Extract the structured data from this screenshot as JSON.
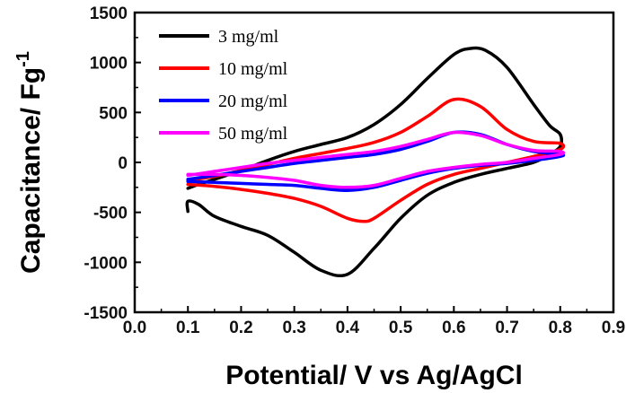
{
  "chart_data": {
    "type": "line",
    "xlabel": "Potential/ V vs Ag/AgCl",
    "ylabel": "Capacitance/ Fg",
    "ylabel_sup": "-1",
    "xlim": [
      0.0,
      0.9
    ],
    "ylim": [
      -1500,
      1500
    ],
    "xticks": [
      0.0,
      0.1,
      0.2,
      0.3,
      0.4,
      0.5,
      0.6,
      0.7,
      0.8,
      0.9
    ],
    "xtick_labels": [
      "0.0",
      "0.1",
      "0.2",
      "0.3",
      "0.4",
      "0.5",
      "0.6",
      "0.7",
      "0.8",
      "0.9"
    ],
    "yticks": [
      -1500,
      -1000,
      -500,
      0,
      500,
      1000,
      1500
    ],
    "ytick_labels": [
      "-1500",
      "-1000",
      "-500",
      "0",
      "500",
      "1000",
      "1500"
    ],
    "grid": false,
    "legend_position": "top-left",
    "series": [
      {
        "name": "3 mg/ml",
        "color": "#000000",
        "x": [
          0.1,
          0.12,
          0.15,
          0.2,
          0.25,
          0.3,
          0.35,
          0.4,
          0.45,
          0.5,
          0.55,
          0.6,
          0.63,
          0.66,
          0.7,
          0.75,
          0.78,
          0.8,
          0.8,
          0.78,
          0.75,
          0.7,
          0.65,
          0.6,
          0.55,
          0.5,
          0.45,
          0.4,
          0.35,
          0.3,
          0.25,
          0.2,
          0.15,
          0.12,
          0.1,
          0.1
        ],
        "y": [
          -260,
          -220,
          -170,
          -80,
          20,
          110,
          180,
          250,
          380,
          580,
          840,
          1080,
          1140,
          1120,
          950,
          580,
          370,
          280,
          160,
          80,
          0,
          -60,
          -120,
          -200,
          -330,
          -560,
          -860,
          -1120,
          -1080,
          -900,
          -730,
          -640,
          -540,
          -420,
          -390,
          -490
        ]
      },
      {
        "name": "10 mg/ml",
        "color": "#ff0000",
        "x": [
          0.1,
          0.15,
          0.2,
          0.25,
          0.3,
          0.35,
          0.4,
          0.45,
          0.5,
          0.55,
          0.6,
          0.65,
          0.7,
          0.75,
          0.8,
          0.8,
          0.75,
          0.7,
          0.65,
          0.6,
          0.55,
          0.5,
          0.45,
          0.43,
          0.4,
          0.35,
          0.3,
          0.25,
          0.2,
          0.15,
          0.1
        ],
        "y": [
          -180,
          -140,
          -80,
          -20,
          40,
          90,
          140,
          200,
          300,
          460,
          630,
          560,
          330,
          210,
          190,
          130,
          60,
          0,
          -60,
          -120,
          -220,
          -380,
          -560,
          -590,
          -560,
          -440,
          -360,
          -310,
          -270,
          -240,
          -220
        ]
      },
      {
        "name": "20 mg/ml",
        "color": "#0000ff",
        "x": [
          0.1,
          0.15,
          0.2,
          0.25,
          0.3,
          0.35,
          0.4,
          0.45,
          0.5,
          0.55,
          0.6,
          0.65,
          0.7,
          0.75,
          0.8,
          0.8,
          0.75,
          0.7,
          0.65,
          0.6,
          0.55,
          0.5,
          0.45,
          0.4,
          0.35,
          0.3,
          0.25,
          0.2,
          0.15,
          0.1
        ],
        "y": [
          -170,
          -130,
          -90,
          -50,
          -10,
          20,
          50,
          80,
          130,
          210,
          300,
          280,
          180,
          110,
          80,
          60,
          20,
          -10,
          -30,
          -60,
          -110,
          -180,
          -250,
          -280,
          -260,
          -230,
          -220,
          -210,
          -200,
          -190
        ]
      },
      {
        "name": "50 mg/ml",
        "color": "#ff00ff",
        "x": [
          0.1,
          0.15,
          0.2,
          0.25,
          0.3,
          0.35,
          0.4,
          0.45,
          0.5,
          0.55,
          0.6,
          0.65,
          0.7,
          0.75,
          0.8,
          0.8,
          0.75,
          0.7,
          0.65,
          0.6,
          0.55,
          0.5,
          0.45,
          0.4,
          0.35,
          0.3,
          0.25,
          0.2,
          0.15,
          0.1
        ],
        "y": [
          -130,
          -90,
          -50,
          -10,
          20,
          50,
          80,
          110,
          160,
          230,
          300,
          270,
          180,
          120,
          110,
          80,
          40,
          0,
          -20,
          -50,
          -90,
          -160,
          -230,
          -250,
          -230,
          -180,
          -150,
          -130,
          -120,
          -120
        ]
      }
    ]
  }
}
